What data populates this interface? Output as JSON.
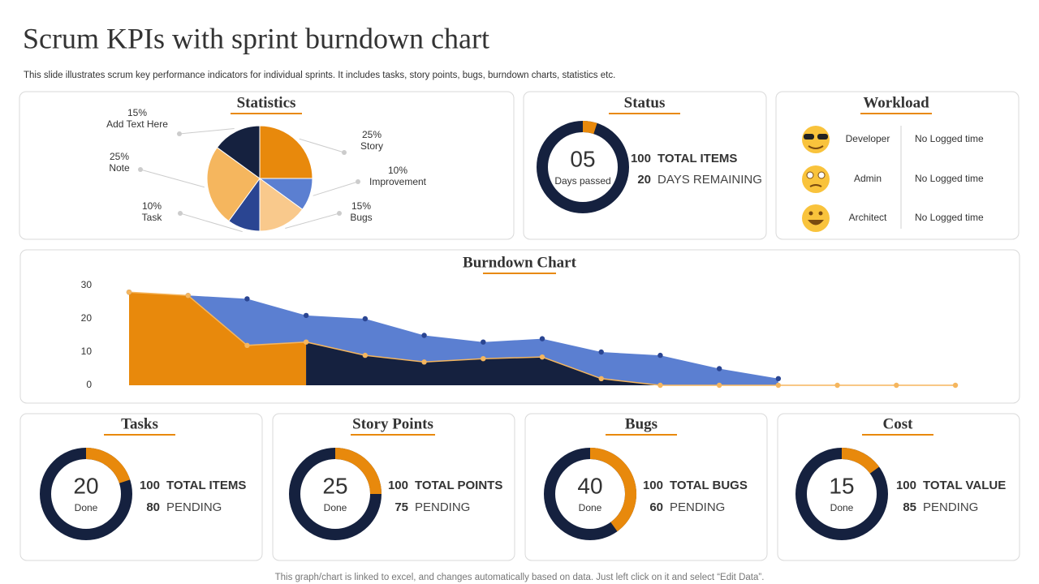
{
  "title": "Scrum KPIs with sprint burndown chart",
  "subtitle": "This slide illustrates scrum key performance indicators for individual sprints. It includes tasks, story points, bugs, burndown charts, statistics etc.",
  "footer": "This graph/chart is linked to excel, and changes automatically based on data. Just left click on it and select “Edit Data”.",
  "workload": {
    "title": "Workload",
    "rows": [
      [
        "Developer",
        "No Logged time"
      ],
      [
        "Admin",
        "No Logged time"
      ],
      [
        "Architect",
        "No Logged time"
      ]
    ]
  },
  "chart_data": [
    {
      "type": "pie",
      "title": "Statistics",
      "categories": [
        "Story",
        "Improvement",
        "Bugs",
        "Task",
        "Note",
        "Add Text Here"
      ],
      "values": [
        25,
        10,
        15,
        10,
        25,
        15
      ],
      "value_labels": [
        "25%",
        "10%",
        "15%",
        "10%",
        "25%",
        "15%"
      ],
      "colors": [
        "#e8890c",
        "#5b7fd1",
        "#f9c98c",
        "#2a4592",
        "#f5b65e",
        "#15213f"
      ]
    },
    {
      "type": "donut",
      "title": "Status",
      "value": 5,
      "value_label": "05",
      "caption": "Days passed",
      "stats": [
        {
          "value": 100,
          "label": "TOTAL ITEMS"
        },
        {
          "value": 20,
          "label": "DAYS REMAINING"
        }
      ],
      "color": "#e8890c",
      "track": "#15213f"
    },
    {
      "type": "area",
      "title": "Burndown Chart",
      "categories": [
        null,
        null,
        null,
        null,
        null,
        null,
        null,
        null,
        null,
        null,
        null,
        null,
        null,
        null,
        null
      ],
      "series": [
        {
          "color": "#5b7fd1",
          "values": [
            28,
            27,
            26,
            21,
            20,
            15,
            13,
            14,
            10,
            9,
            5,
            2,
            null,
            null,
            null
          ]
        },
        {
          "color": "#e8890c",
          "values": [
            28,
            27,
            12,
            13,
            9,
            7,
            8,
            8.5,
            2,
            0,
            0,
            0,
            0,
            0,
            0
          ]
        }
      ],
      "ylim": [
        0,
        30
      ],
      "yticks": [
        0,
        10,
        20,
        30
      ]
    },
    {
      "type": "donut",
      "title": "Tasks",
      "value": 20,
      "caption": "Done",
      "stats": [
        {
          "value": 100,
          "label": "TOTAL ITEMS"
        },
        {
          "value": 80,
          "label": "PENDING"
        }
      ],
      "color": "#e8890c",
      "track": "#15213f"
    },
    {
      "type": "donut",
      "title": "Story Points",
      "value": 25,
      "caption": "Done",
      "stats": [
        {
          "value": 100,
          "label": "TOTAL POINTS"
        },
        {
          "value": 75,
          "label": "PENDING"
        }
      ],
      "color": "#e8890c",
      "track": "#15213f"
    },
    {
      "type": "donut",
      "title": "Bugs",
      "value": 40,
      "caption": "Done",
      "stats": [
        {
          "value": 100,
          "label": "TOTAL BUGS"
        },
        {
          "value": 60,
          "label": "PENDING"
        }
      ],
      "color": "#e8890c",
      "track": "#15213f"
    },
    {
      "type": "donut",
      "title": "Cost",
      "value": 15,
      "caption": "Done",
      "stats": [
        {
          "value": 100,
          "label": "TOTAL VALUE"
        },
        {
          "value": 85,
          "label": "PENDING"
        }
      ],
      "color": "#e8890c",
      "track": "#15213f"
    }
  ]
}
